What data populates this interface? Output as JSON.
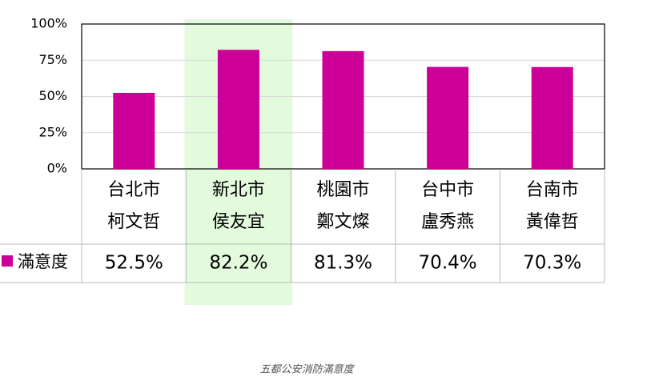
{
  "chart_data": {
    "type": "bar",
    "caption": "五都公安消防滿意度",
    "categories": [
      [
        "台北市",
        "柯文哲"
      ],
      [
        "新北市",
        "侯友宜"
      ],
      [
        "桃園市",
        "鄭文燦"
      ],
      [
        "台中市",
        "盧秀燕"
      ],
      [
        "台南市",
        "黃偉哲"
      ]
    ],
    "series": [
      {
        "name": "滿意度",
        "color": "#cc0099",
        "values": [
          52.5,
          82.2,
          81.3,
          70.4,
          70.3
        ],
        "value_labels": [
          "52.5%",
          "82.2%",
          "81.3%",
          "70.4%",
          "70.3%"
        ]
      }
    ],
    "ylim": [
      0,
      100
    ],
    "yticks": [
      {
        "value": 0,
        "label": "0%"
      },
      {
        "value": 25,
        "label": "25%"
      },
      {
        "value": 50,
        "label": "50%"
      },
      {
        "value": 75,
        "label": "75%"
      },
      {
        "value": 100,
        "label": "100%"
      }
    ],
    "grid": true,
    "highlight_category": 1,
    "highlight_color": "#e3fbdc"
  }
}
